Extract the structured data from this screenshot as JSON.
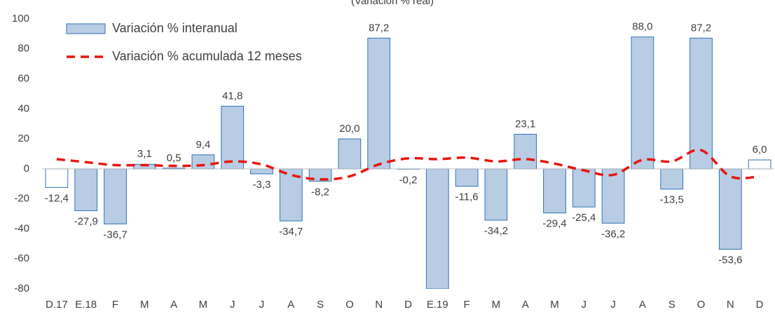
{
  "chart_data": {
    "type": "bar",
    "subtitle": "(Variación % real)",
    "categories": [
      "D.17",
      "E.18",
      "F",
      "M",
      "A",
      "M",
      "J",
      "J",
      "A",
      "S",
      "O",
      "N",
      "D",
      "E.19",
      "F",
      "M",
      "A",
      "M",
      "J",
      "J",
      "A",
      "S",
      "O",
      "N",
      "D"
    ],
    "series": [
      {
        "name": "Variación % interanual",
        "type": "bar",
        "color": "#b8cce4",
        "edge_color": "#2e75b6",
        "bar_colors": [
          "#ffffff",
          "#b8cce4",
          "#b8cce4",
          "#b8cce4",
          "#b8cce4",
          "#b8cce4",
          "#b8cce4",
          "#b8cce4",
          "#b8cce4",
          "#b8cce4",
          "#b8cce4",
          "#b8cce4",
          "#b8cce4",
          "#b8cce4",
          "#b8cce4",
          "#b8cce4",
          "#b8cce4",
          "#b8cce4",
          "#b8cce4",
          "#b8cce4",
          "#b8cce4",
          "#b8cce4",
          "#b8cce4",
          "#b8cce4",
          "#ffffff"
        ],
        "values": [
          -12.4,
          -27.9,
          -36.7,
          3.1,
          0.5,
          9.4,
          41.8,
          -3.3,
          -34.7,
          -8.2,
          20.0,
          87.2,
          -0.2,
          -80,
          -11.6,
          -34.2,
          23.1,
          -29.4,
          -25.4,
          -36.2,
          88.0,
          -13.5,
          87.2,
          -53.6,
          6.0
        ],
        "value_labels": [
          "-12,4",
          "-27,9",
          "-36,7",
          "3,1",
          "0,5",
          "9,4",
          "41,8",
          "-3,3",
          "-34,7",
          "-8,2",
          "20,0",
          "87,2",
          "-0,2",
          null,
          "-11,6",
          "-34,2",
          "23,1",
          "-29,4",
          "-25,4",
          "-36,2",
          "88,0",
          "-13,5",
          "87,2",
          "-53,6",
          "6,0"
        ]
      },
      {
        "name": "Variación % acumulada 12 meses",
        "type": "line",
        "color": "#e8150f",
        "dashed": true,
        "values": [
          6.5,
          4.5,
          2.5,
          2.5,
          2,
          2.5,
          5,
          3,
          -4,
          -7,
          -5,
          3,
          7,
          6.5,
          7.5,
          5,
          6.5,
          3.5,
          -1,
          -4,
          6,
          5,
          12.5,
          -5,
          -5
        ]
      }
    ],
    "ylim": [
      -80,
      100
    ],
    "yticks": [
      -80,
      -60,
      -40,
      -20,
      0,
      20,
      40,
      60,
      80,
      100
    ],
    "grid": false,
    "legend": "top-left"
  }
}
